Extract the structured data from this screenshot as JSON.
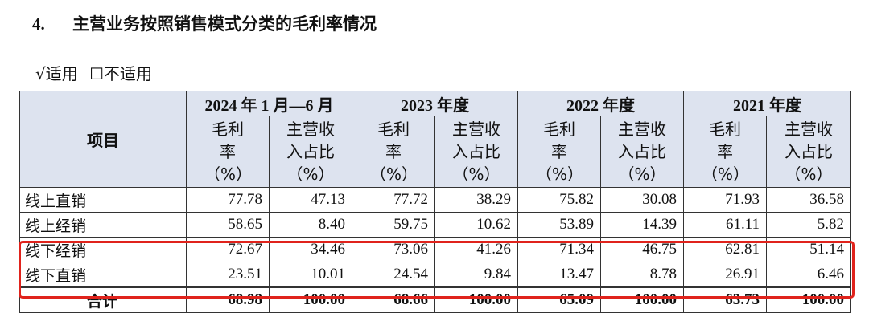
{
  "heading": {
    "number": "4.",
    "title": "主营业务按照销售模式分类的毛利率情况"
  },
  "options": {
    "applicable": "√适用",
    "not_applicable": "☐不适用"
  },
  "table": {
    "item_header": "项目",
    "periods": [
      "2024 年 1 月—6 月",
      "2023 年度",
      "2022 年度",
      "2021 年度"
    ],
    "subheaders": {
      "margin": "毛利率（%）",
      "share": "主营收入占比（%）"
    },
    "rows": [
      {
        "name": "线上直销",
        "values": [
          "77.78",
          "47.13",
          "77.72",
          "38.29",
          "75.82",
          "30.08",
          "71.93",
          "36.58"
        ]
      },
      {
        "name": "线上经销",
        "values": [
          "58.65",
          "8.40",
          "59.75",
          "10.62",
          "53.89",
          "14.39",
          "61.11",
          "5.82"
        ]
      },
      {
        "name": "线下经销",
        "values": [
          "72.67",
          "34.46",
          "73.06",
          "41.26",
          "71.34",
          "46.75",
          "62.81",
          "51.14"
        ]
      },
      {
        "name": "线下直销",
        "values": [
          "23.51",
          "10.01",
          "24.54",
          "9.84",
          "13.47",
          "8.78",
          "26.91",
          "6.46"
        ]
      }
    ],
    "total": {
      "name": "合计",
      "values": [
        "68.98",
        "100.00",
        "68.66",
        "100.00",
        "65.09",
        "100.00",
        "63.73",
        "100.00"
      ]
    }
  },
  "highlight_color": "#e0231c",
  "header_bg": "#dde3ef"
}
